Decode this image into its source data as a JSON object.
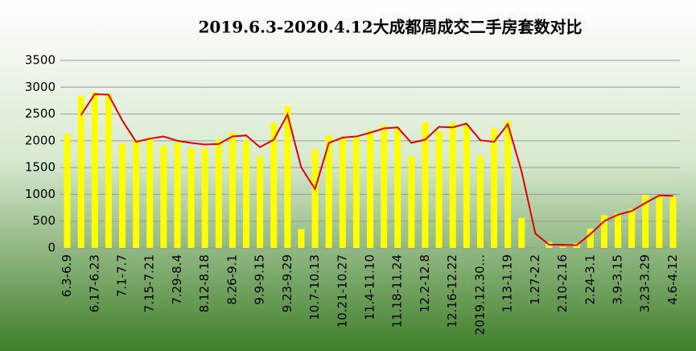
{
  "chart_data": {
    "type": "bar_line",
    "title": "2019.6.3-2020.4.12大成都周成交二手房套数对比",
    "categories": [
      "6.3-6.9",
      null,
      "6.17-6.23",
      null,
      "7.1-7.7",
      null,
      "7.15-7.21",
      null,
      "7.29-8.4",
      null,
      "8.12-8.18",
      null,
      "8.26-9.1",
      null,
      "9.9-9.15",
      null,
      "9.23-9.29",
      null,
      "10.7-10.13",
      null,
      "10.21-10.27",
      null,
      "11.4-11.10",
      null,
      "11.18-11.24",
      null,
      "12.2-12.8",
      null,
      "12.16-12.22",
      null,
      "2019.12.30...",
      null,
      "1.13-1.19",
      null,
      "1.27-2.2",
      null,
      "2.10-2.16",
      null,
      "2.24-3.1",
      null,
      "3.9-3.15",
      null,
      "3.23-3.29",
      null,
      "4.6-4.12"
    ],
    "series": [
      {
        "type": "bar",
        "color": "#ffff00",
        "values": [
          2130,
          2830,
          2910,
          2870,
          1940,
          2020,
          2070,
          1910,
          1970,
          1870,
          1860,
          2030,
          2150,
          2010,
          1710,
          2340,
          2650,
          350,
          1840,
          2100,
          2050,
          2090,
          2200,
          2290,
          2220,
          1710,
          2350,
          2180,
          2340,
          2300,
          1720,
          2230,
          2370,
          560,
          0,
          110,
          20,
          90,
          360,
          610,
          650,
          730,
          990,
          980,
          960
        ]
      },
      {
        "type": "line",
        "color": "#e00000",
        "values": [
          null,
          2480,
          2870,
          2860,
          2380,
          1980,
          2040,
          2080,
          2000,
          1960,
          1930,
          1940,
          2080,
          2100,
          1880,
          2020,
          2490,
          1500,
          1100,
          1960,
          2060,
          2080,
          2150,
          2230,
          2250,
          1960,
          2020,
          2260,
          2250,
          2320,
          2010,
          1980,
          2310,
          1430,
          270,
          60,
          60,
          50,
          260,
          500,
          620,
          690,
          840,
          980,
          970
        ]
      }
    ],
    "ylim": [
      0,
      3500
    ],
    "yticks": [
      0,
      500,
      1000,
      1500,
      2000,
      2500,
      3000,
      3500
    ],
    "grid": true
  }
}
